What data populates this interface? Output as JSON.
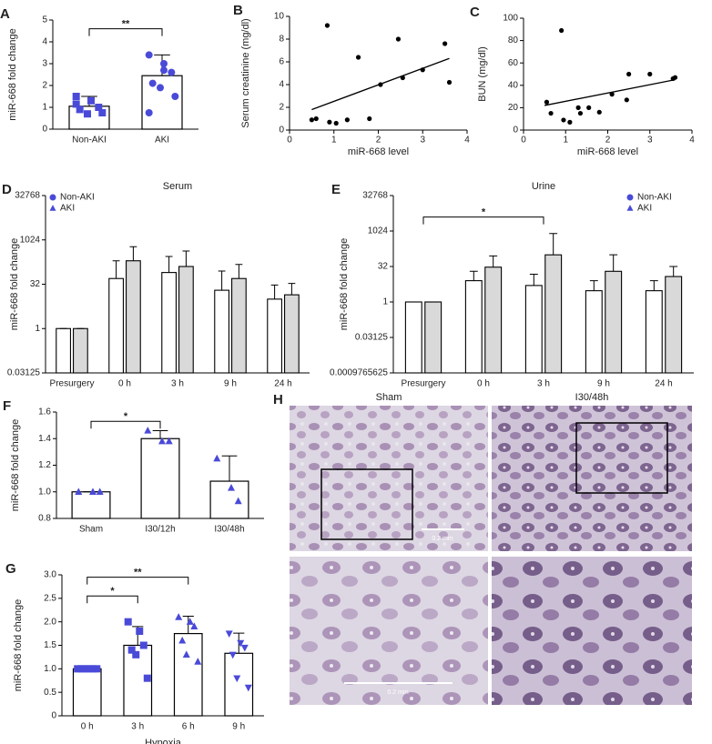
{
  "chart_data": [
    {
      "panel": "A",
      "type": "bar",
      "categories": [
        "Non-AKI",
        "AKI"
      ],
      "values": [
        1.05,
        2.45
      ],
      "errors": [
        0.45,
        0.95
      ],
      "points": [
        [
          1.5,
          1.3,
          1.0,
          0.9,
          0.7,
          0.75,
          1.15
        ],
        [
          3.4,
          3.0,
          2.6,
          2.1,
          1.9,
          1.5,
          0.75,
          2.7
        ]
      ],
      "markers": [
        "square",
        "circle"
      ],
      "color": "#4a4ad8",
      "ylabel": "miR-668 fold change",
      "ylim": [
        0,
        5
      ],
      "yticks": [
        0,
        1,
        2,
        3,
        4,
        5
      ],
      "annotations": [
        {
          "text": "**"
        }
      ]
    },
    {
      "panel": "B",
      "type": "scatter",
      "xlabel": "miR-668 level",
      "ylabel": "Serum creatinine (mg/dl)",
      "color": "#000000",
      "x": [
        0.85,
        0.5,
        0.6,
        0.9,
        1.05,
        1.3,
        1.55,
        1.8,
        2.05,
        2.45,
        2.55,
        3.0,
        3.5,
        3.6
      ],
      "y": [
        9.2,
        0.9,
        1.0,
        0.7,
        0.6,
        0.9,
        6.4,
        1.0,
        4.0,
        8.0,
        4.6,
        5.3,
        7.6,
        4.2
      ],
      "trendline": {
        "x": [
          0.5,
          3.6
        ],
        "y": [
          1.8,
          6.3
        ]
      },
      "xlim": [
        0,
        4
      ],
      "xticks": [
        0,
        1,
        2,
        3,
        4
      ],
      "ylim": [
        0,
        10
      ],
      "yticks": [
        0,
        2,
        4,
        6,
        8,
        10
      ]
    },
    {
      "panel": "C",
      "type": "scatter",
      "xlabel": "miR-668 level",
      "ylabel": "BUN (mg/dl)",
      "color": "#000000",
      "x": [
        0.55,
        0.65,
        0.9,
        0.95,
        1.1,
        1.3,
        1.35,
        1.55,
        1.8,
        2.1,
        2.45,
        2.5,
        3.0,
        3.55,
        3.6
      ],
      "y": [
        25,
        15,
        89,
        9,
        7,
        20,
        15,
        20,
        16,
        32,
        27,
        50,
        50,
        46,
        47
      ],
      "trendline": {
        "x": [
          0.5,
          3.6
        ],
        "y": [
          22,
          45
        ]
      },
      "xlim": [
        0,
        4
      ],
      "xticks": [
        0,
        1,
        2,
        3,
        4
      ],
      "ylim": [
        0,
        100
      ],
      "yticks": [
        0,
        20,
        40,
        60,
        80,
        100
      ]
    },
    {
      "panel": "D",
      "type": "grouped_bar",
      "title": "Serum",
      "ylabel": "miR-668 fold change",
      "yscale": "log",
      "legend": "upper left",
      "categories": [
        "Presurgery",
        "0 h",
        "3 h",
        "9 h",
        "24 h"
      ],
      "series": [
        {
          "name": "Non-AKI",
          "marker": "circle",
          "color": "#4a4ad8",
          "bar_color": "#ffffff",
          "values": [
            1,
            50,
            80,
            20,
            10
          ],
          "errors": [
            0,
            150,
            200,
            70,
            20
          ]
        },
        {
          "name": "AKI",
          "marker": "triangle",
          "color": "#4a4ad8",
          "bar_color": "#d9d9d9",
          "values": [
            1,
            200,
            128,
            50,
            14
          ],
          "errors": [
            0,
            400,
            300,
            100,
            20
          ]
        }
      ],
      "ylim": [
        0.03125,
        32768
      ],
      "yticks": [
        0.03125,
        1,
        32,
        1024,
        32768
      ]
    },
    {
      "panel": "E",
      "type": "grouped_bar",
      "title": "Urine",
      "ylabel": "miR-668 fold change",
      "yscale": "log",
      "legend": "upper right",
      "categories": [
        "Presurgery",
        "0 h",
        "3 h",
        "9 h",
        "24 h"
      ],
      "series": [
        {
          "name": "Non-AKI",
          "marker": "circle",
          "color": "#4a4ad8",
          "bar_color": "#ffffff",
          "values": [
            1,
            8,
            5,
            3,
            3
          ],
          "errors": [
            0,
            12,
            10,
            5,
            5
          ]
        },
        {
          "name": "AKI",
          "marker": "triangle",
          "color": "#4a4ad8",
          "bar_color": "#d9d9d9",
          "values": [
            1,
            30,
            100,
            20,
            12
          ],
          "errors": [
            0,
            60,
            700,
            80,
            20
          ]
        }
      ],
      "ylim": [
        0.0009765625,
        32768
      ],
      "yticks": [
        0.0009765625,
        0.03125,
        1,
        32,
        1024,
        32768
      ],
      "annotations": [
        {
          "text": "*"
        }
      ]
    },
    {
      "panel": "F",
      "type": "bar",
      "categories": [
        "Sham",
        "I30/12h",
        "I30/48h"
      ],
      "values": [
        1.0,
        1.4,
        1.08
      ],
      "errors": [
        0,
        0.06,
        0.19
      ],
      "points": [
        [
          1.0,
          1.0,
          1.0
        ],
        [
          1.46,
          1.38,
          1.38
        ],
        [
          1.25,
          1.03,
          0.93
        ]
      ],
      "markers": [
        "triangle",
        "triangle",
        "triangle"
      ],
      "color": "#4a4ad8",
      "ylabel": "miR-668 fold change",
      "ylim": [
        0.8,
        1.6
      ],
      "yticks": [
        0.8,
        {
          "value": 1.0,
          "label": "1.0"
        },
        1.2,
        1.4,
        1.6
      ],
      "annotations": [
        {
          "text": "*"
        }
      ]
    },
    {
      "panel": "G",
      "type": "bar",
      "categories": [
        "0 h",
        "3 h",
        "6 h",
        "9 h"
      ],
      "values": [
        1.0,
        1.5,
        1.75,
        1.33
      ],
      "errors": [
        0,
        0.4,
        0.37,
        0.43
      ],
      "points": [
        [
          1,
          1,
          1,
          1,
          1,
          1
        ],
        [
          2.0,
          1.8,
          1.5,
          1.4,
          1.3,
          0.8
        ],
        [
          2.1,
          2.0,
          1.9,
          1.6,
          1.3,
          1.15
        ],
        [
          1.75,
          1.55,
          1.45,
          1.3,
          0.8,
          0.6
        ]
      ],
      "markers": [
        "square",
        "square",
        "triangle",
        "triangle-down"
      ],
      "color": "#4a4ad8",
      "ylabel": "miR-668 fold change",
      "xlabel": "Hypoxia",
      "ylim": [
        0,
        3
      ],
      "yticks": [
        0,
        {
          "value": 0.5,
          "label": "0.5"
        },
        {
          "value": 1.0,
          "label": "1.0"
        },
        {
          "value": 1.5,
          "label": "1.5"
        },
        {
          "value": 2.0,
          "label": "2.0"
        },
        {
          "value": 2.5,
          "label": "2.5"
        },
        {
          "value": 3.0,
          "label": "3.0"
        }
      ],
      "annotations": [
        {
          "text": "*"
        },
        {
          "text": "**"
        }
      ]
    }
  ],
  "micrographs": {
    "panel": "H",
    "columns": [
      "Sham",
      "I30/48h"
    ],
    "scale_bars": [
      "0.2 mm",
      "0.2 mm"
    ]
  }
}
